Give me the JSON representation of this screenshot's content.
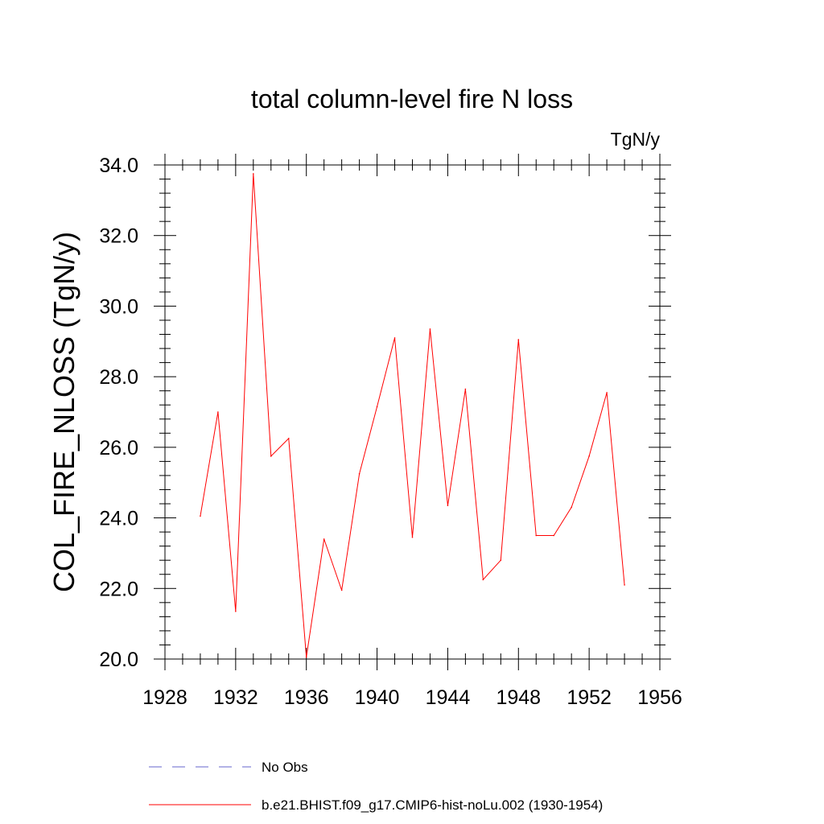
{
  "chart_data": {
    "type": "line",
    "title": "total column-level fire N loss",
    "units": "TgN/y",
    "ylabel": "COL_FIRE_NLOSS  (TgN/y)",
    "xlabel": "",
    "xlim": [
      1928,
      1956
    ],
    "ylim": [
      20.0,
      34.0
    ],
    "x_ticks": [
      "1928",
      "1932",
      "1936",
      "1940",
      "1944",
      "1948",
      "1952",
      "1956"
    ],
    "y_ticks": [
      "20.0",
      "22.0",
      "24.0",
      "26.0",
      "28.0",
      "30.0",
      "32.0",
      "34.0"
    ],
    "x": [
      1930,
      1931,
      1932,
      1933,
      1934,
      1935,
      1936,
      1937,
      1938,
      1939,
      1940,
      1941,
      1942,
      1943,
      1944,
      1945,
      1946,
      1947,
      1948,
      1949,
      1950,
      1951,
      1952,
      1953,
      1954
    ],
    "series": [
      {
        "name": "b.e21.BHIST.f09_g17.CMIP6-hist-noLu.002 (1930-1954)",
        "color": "#ff0000",
        "style": "solid",
        "values": [
          24.05,
          27.0,
          21.35,
          33.75,
          25.75,
          26.25,
          20.05,
          23.4,
          21.95,
          25.25,
          27.15,
          29.1,
          23.45,
          29.35,
          24.35,
          27.65,
          22.25,
          22.8,
          29.05,
          23.5,
          23.5,
          24.3,
          25.75,
          27.55,
          22.1
        ]
      }
    ],
    "legend": [
      {
        "label": "No Obs",
        "color": "#6666cc",
        "style": "dashed"
      },
      {
        "label": "b.e21.BHIST.f09_g17.CMIP6-hist-noLu.002 (1930-1954)",
        "color": "#ff0000",
        "style": "solid"
      }
    ],
    "legend_placement": "bottom",
    "grid": false
  }
}
